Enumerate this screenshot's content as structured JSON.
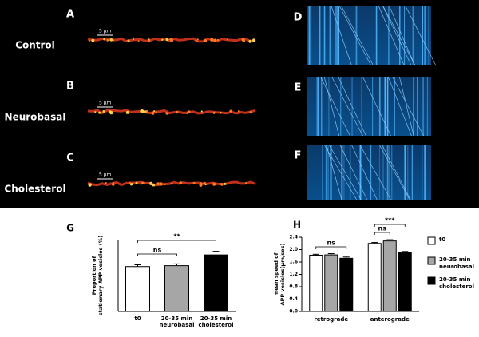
{
  "panels": {
    "letters": [
      "A",
      "B",
      "C",
      "D",
      "E",
      "F"
    ],
    "conditions": [
      "Control",
      "Neurobasal",
      "Cholesterol"
    ],
    "scale_bar": "5 µm"
  },
  "chart_data": [
    {
      "type": "bar",
      "panel": "G",
      "ylabel": [
        "Proportion of",
        "stationary APP vesicles (%)"
      ],
      "categories": [
        "t0",
        "20-35 min neurobasal",
        "20-35 min cholesterol"
      ],
      "values": [
        50,
        51,
        63
      ],
      "errors": [
        2,
        2,
        4
      ],
      "colors": [
        "#ffffff",
        "#a6a6a6",
        "#000000"
      ],
      "ylim": [
        0,
        80
      ],
      "annotations": [
        "ns",
        "**"
      ]
    },
    {
      "type": "grouped_bar",
      "panel": "H",
      "ylabel": [
        "mean speed of",
        "APP vesicles(µm/sec)"
      ],
      "categories": [
        "retrograde",
        "anterograde"
      ],
      "series": [
        {
          "name": "t0",
          "color": "#ffffff",
          "values": [
            1.82,
            2.2
          ],
          "errors": [
            0.03,
            0.03
          ]
        },
        {
          "name": "20-35 min neurobasal",
          "color": "#a6a6a6",
          "values": [
            1.83,
            2.28
          ],
          "errors": [
            0.04,
            0.04
          ]
        },
        {
          "name": "20-35 min cholesterol",
          "color": "#000000",
          "values": [
            1.72,
            1.9
          ],
          "errors": [
            0.04,
            0.04
          ]
        }
      ],
      "ylim": [
        0,
        2.4
      ],
      "yticks": [
        {
          "value": 0,
          "label": "0.0"
        },
        0.4,
        0.8,
        1.2,
        1.6,
        {
          "value": 2,
          "label": "2.0"
        },
        2.4
      ],
      "annotations": [
        "ns",
        "ns",
        "***"
      ]
    }
  ]
}
